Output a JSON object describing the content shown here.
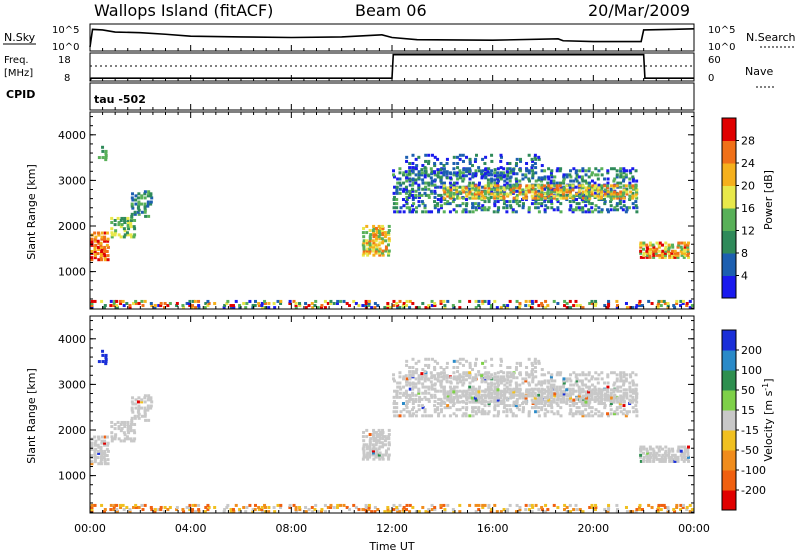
{
  "header": {
    "station": "Wallops Island (fitACF)",
    "beam": "Beam 06",
    "date": "20/Mar/2009"
  },
  "chart_data": [
    {
      "type": "line",
      "panel": "noise",
      "left_label": "N.Sky",
      "right_label": "N.Search",
      "left_ticks": [
        "10^5",
        "10^0"
      ],
      "right_ticks": [
        "10^5",
        "10^0"
      ],
      "x": [
        0,
        0.1,
        0.5,
        1,
        2,
        3,
        4,
        6,
        8,
        10,
        11.6,
        12,
        13,
        16,
        18.6,
        18.8,
        20,
        21.9,
        22,
        23,
        24
      ],
      "series": [
        {
          "values": [
            0.15,
            0.8,
            0.78,
            0.7,
            0.68,
            0.62,
            0.55,
            0.52,
            0.5,
            0.52,
            0.6,
            0.5,
            0.42,
            0.4,
            0.45,
            0.38,
            0.35,
            0.35,
            0.78,
            0.8,
            0.82
          ]
        }
      ]
    },
    {
      "type": "line",
      "panel": "frequency",
      "left_label": "Freq.",
      "left_unit": "[MHz]",
      "left_ticks": [
        "18",
        "8"
      ],
      "right_label": "Nave",
      "right_ticks": [
        "60",
        "0"
      ],
      "cpid_label": "CPID",
      "cpid_value": "tau  -502",
      "ylim": [
        8,
        18
      ],
      "x": [
        0,
        0.05,
        12,
        12.05,
        22,
        22.05,
        24
      ],
      "series": [
        {
          "values": [
            8,
            9,
            9,
            17.4,
            17.4,
            9,
            9
          ]
        }
      ],
      "dotted_reference": 13.4
    },
    {
      "type": "heatmap",
      "panel": "power",
      "ylabel": "Slant Range [km]",
      "yticks": [
        1000,
        2000,
        3000,
        4000
      ],
      "colorbar_label": "Power [dB]",
      "colorbar_ticks": [
        4,
        8,
        12,
        16,
        20,
        24,
        28
      ],
      "colorbar_colors": [
        "#1a1aee",
        "#1c5fb0",
        "#2f8a5a",
        "#58b058",
        "#e8e84a",
        "#f5b01c",
        "#f07018",
        "#e00000"
      ]
    },
    {
      "type": "heatmap",
      "panel": "velocity",
      "ylabel": "Slant Range [km]",
      "yticks": [
        1000,
        2000,
        3000,
        4000
      ],
      "xlabel": "Time UT",
      "xticks": [
        "00:00",
        "04:00",
        "08:00",
        "12:00",
        "16:00",
        "20:00",
        "00:00"
      ],
      "colorbar_label": "Velocity [m s",
      "colorbar_label_sup": "-1",
      "colorbar_label_end": "]",
      "colorbar_ticks": [
        200,
        100,
        50,
        15,
        -15,
        -50,
        -100,
        -200
      ],
      "colorbar_colors": [
        "#1a2fd8",
        "#2a8ac8",
        "#2e8f4f",
        "#7ed048",
        "#c8c8c8",
        "#f0c020",
        "#f08c1c",
        "#f06010",
        "#e00000"
      ]
    }
  ]
}
